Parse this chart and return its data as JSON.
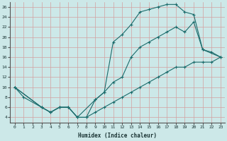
{
  "xlabel": "Humidex (Indice chaleur)",
  "bg_color": "#cce8e8",
  "grid_color": "#c0dada",
  "line_color": "#1a6b6b",
  "xlim": [
    -0.5,
    23.5
  ],
  "ylim": [
    3,
    27
  ],
  "xticks": [
    0,
    1,
    2,
    3,
    4,
    5,
    6,
    7,
    8,
    9,
    10,
    11,
    12,
    13,
    14,
    15,
    16,
    17,
    18,
    19,
    20,
    21,
    22,
    23
  ],
  "yticks": [
    4,
    6,
    8,
    10,
    12,
    14,
    16,
    18,
    20,
    22,
    24,
    26
  ],
  "line1_x": [
    0,
    3,
    4,
    5,
    6,
    7,
    8,
    9,
    10,
    11,
    12,
    13,
    14,
    15,
    16,
    17,
    18,
    19,
    20,
    21,
    22,
    23
  ],
  "line1_y": [
    10,
    6,
    5,
    6,
    6,
    4,
    4,
    5,
    6,
    7,
    8,
    9,
    10,
    11,
    12,
    13,
    14,
    14,
    15,
    15,
    15,
    16
  ],
  "line2_x": [
    0,
    3,
    4,
    5,
    6,
    7,
    8,
    9,
    10,
    11,
    12,
    13,
    14,
    15,
    16,
    17,
    18,
    19,
    20,
    21,
    23
  ],
  "line2_y": [
    10,
    6,
    5,
    6,
    6,
    4,
    4,
    7.5,
    9,
    11,
    12,
    16,
    18,
    19,
    20,
    21,
    22,
    21,
    23,
    17.5,
    16
  ],
  "line3_x": [
    0,
    1,
    3,
    4,
    5,
    6,
    7,
    9,
    10,
    11,
    12,
    13,
    14,
    15,
    16,
    17,
    18,
    19,
    20,
    21,
    22,
    23
  ],
  "line3_y": [
    10,
    8,
    6,
    5,
    6,
    6,
    4,
    7.5,
    9,
    19,
    20.5,
    22.5,
    25,
    25.5,
    26,
    26.5,
    26.5,
    25,
    24.5,
    17.5,
    17,
    16
  ]
}
